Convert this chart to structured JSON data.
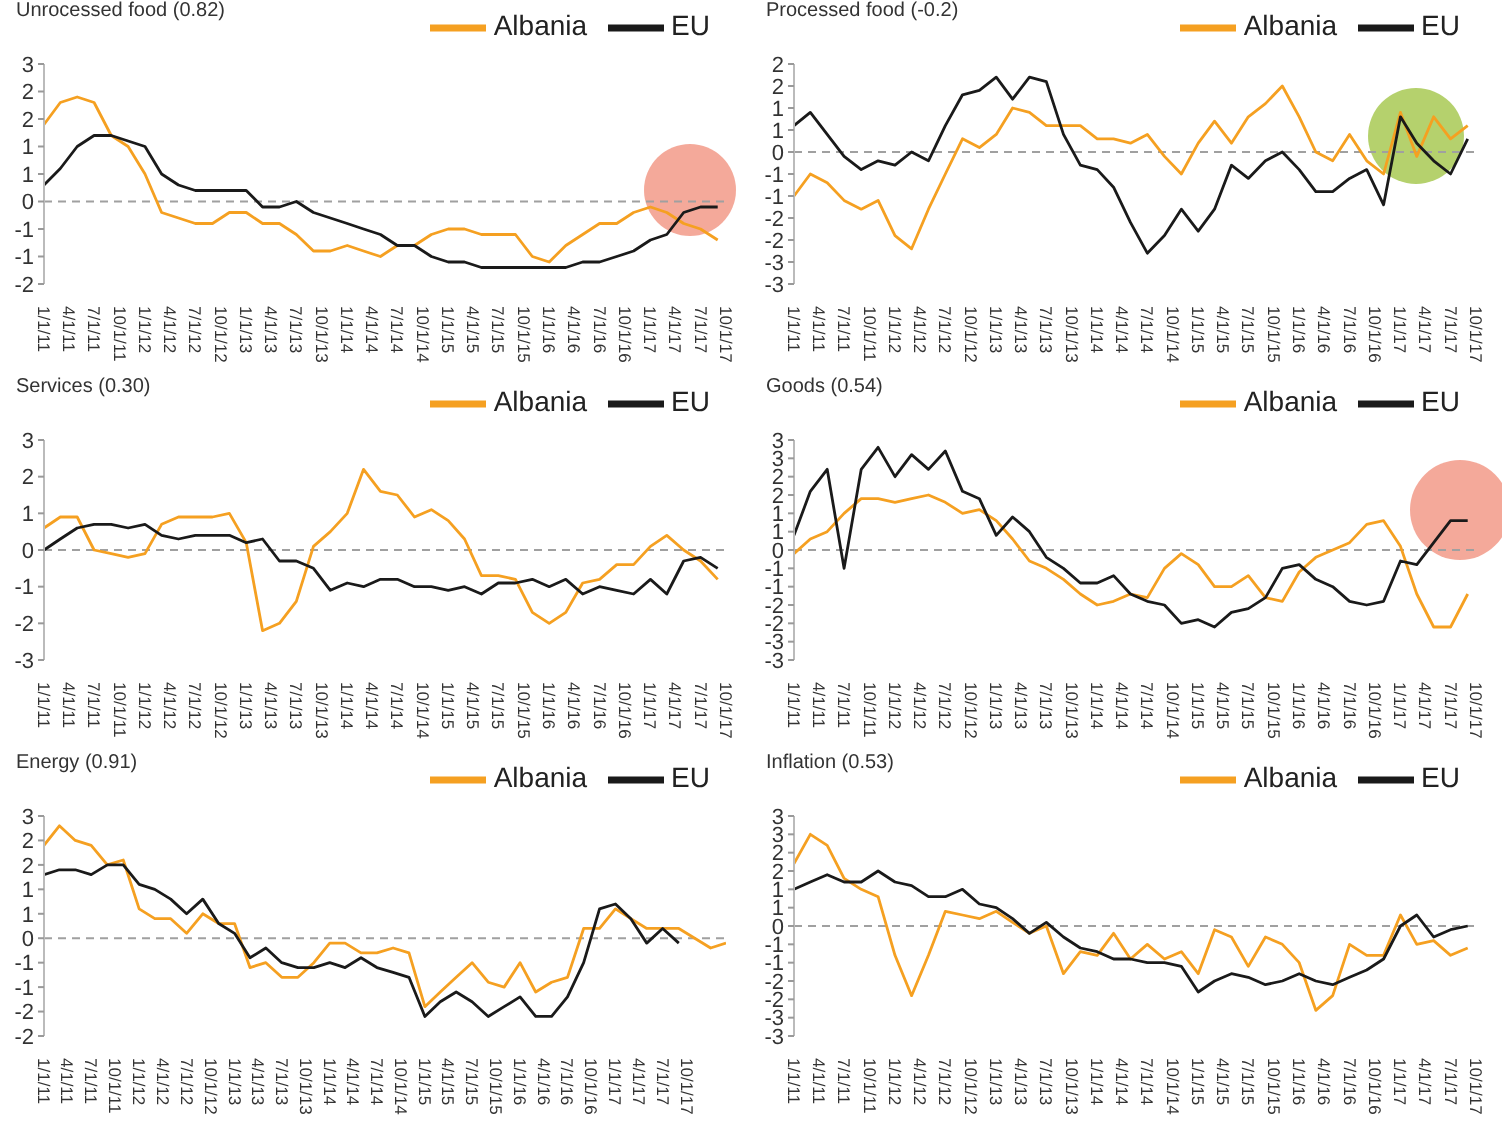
{
  "chart_data": [
    {
      "type": "line",
      "title": "Unrocessed food (0.82)",
      "legend": "top right",
      "marker": "none",
      "grid": false,
      "x": [
        "2011-01",
        "2011-03",
        "2011-05",
        "2011-07",
        "2011-09",
        "2011-11",
        "2012-01",
        "2012-03",
        "2012-05",
        "2012-07",
        "2012-09",
        "2012-11",
        "2013-01",
        "2013-03",
        "2013-05",
        "2013-07",
        "2013-09",
        "2013-11",
        "2014-01",
        "2014-03",
        "2014-05",
        "2014-07",
        "2014-09",
        "2014-11",
        "2015-01",
        "2015-03",
        "2015-05",
        "2015-07",
        "2015-09",
        "2015-11",
        "2016-01",
        "2016-03",
        "2016-05",
        "2016-07",
        "2016-09",
        "2016-11",
        "2017-01",
        "2017-03",
        "2017-05",
        "2017-07",
        "2017-09"
      ],
      "xlim": [
        "2011-01",
        "2017-10"
      ],
      "xticks": [
        {
          "value": "2011-01",
          "label": "1/1/11"
        },
        {
          "value": "2011-04",
          "label": "4/1/11"
        },
        {
          "value": "2011-07",
          "label": "7/1/11"
        },
        {
          "value": "2011-10",
          "label": "10/1/11"
        },
        {
          "value": "2012-01",
          "label": "1/1/12"
        },
        {
          "value": "2012-04",
          "label": "4/1/12"
        },
        {
          "value": "2012-07",
          "label": "7/1/12"
        },
        {
          "value": "2012-10",
          "label": "10/1/12"
        },
        {
          "value": "2013-01",
          "label": "1/1/13"
        },
        {
          "value": "2013-04",
          "label": "4/1/13"
        },
        {
          "value": "2013-07",
          "label": "7/1/13"
        },
        {
          "value": "2013-10",
          "label": "10/1/13"
        },
        {
          "value": "2014-01",
          "label": "1/1/14"
        },
        {
          "value": "2014-04",
          "label": "4/1/14"
        },
        {
          "value": "2014-07",
          "label": "7/1/14"
        },
        {
          "value": "2014-10",
          "label": "10/1/14"
        },
        {
          "value": "2015-01",
          "label": "1/1/15"
        },
        {
          "value": "2015-04",
          "label": "4/1/15"
        },
        {
          "value": "2015-07",
          "label": "7/1/15"
        },
        {
          "value": "2015-10",
          "label": "10/1/15"
        },
        {
          "value": "2016-01",
          "label": "1/1/16"
        },
        {
          "value": "2016-04",
          "label": "4/1/16"
        },
        {
          "value": "2016-07",
          "label": "7/1/16"
        },
        {
          "value": "2016-10",
          "label": "10/1/16"
        },
        {
          "value": "2017-01",
          "label": "1/1/17"
        },
        {
          "value": "2017-04",
          "label": "4/1/17"
        },
        {
          "value": "2017-07",
          "label": "7/1/17"
        },
        {
          "value": "2017-10",
          "label": "10/1/17"
        }
      ],
      "ylim": [
        -1.5,
        2.5
      ],
      "yticks": [
        {
          "value": 2.5,
          "label": "3"
        },
        {
          "value": 2,
          "label": "2"
        },
        {
          "value": 1.5,
          "label": "2"
        },
        {
          "value": 1,
          "label": "1"
        },
        {
          "value": 0.5,
          "label": "1"
        },
        0,
        {
          "value": -0.5,
          "label": "-1"
        },
        {
          "value": -1,
          "label": "-1"
        },
        {
          "value": -1.5,
          "label": "-2"
        }
      ],
      "ref_lines": [
        {
          "axis": "y",
          "value": 0,
          "color": "#a0a0a0",
          "line_style": "dashed"
        }
      ],
      "series": [
        {
          "name": "Albania",
          "color": "#f5a021",
          "values": [
            1.4,
            1.8,
            1.9,
            1.8,
            1.2,
            1.0,
            0.5,
            -0.2,
            -0.3,
            -0.4,
            -0.4,
            -0.2,
            -0.2,
            -0.4,
            -0.4,
            -0.6,
            -0.9,
            -0.9,
            -0.8,
            -0.9,
            -1.0,
            -0.8,
            -0.8,
            -0.6,
            -0.5,
            -0.5,
            -0.6,
            -0.6,
            -0.6,
            -1.0,
            -1.1,
            -0.8,
            -0.6,
            -0.4,
            -0.4,
            -0.2,
            -0.1,
            -0.2,
            -0.4,
            -0.5,
            -0.7
          ]
        },
        {
          "name": "EU",
          "color": "#1a1a1a",
          "values": [
            0.3,
            0.6,
            1.0,
            1.2,
            1.2,
            1.1,
            1.0,
            0.5,
            0.3,
            0.2,
            0.2,
            0.2,
            0.2,
            -0.1,
            -0.1,
            0.0,
            -0.2,
            -0.3,
            -0.4,
            -0.5,
            -0.6,
            -0.8,
            -0.8,
            -1.0,
            -1.1,
            -1.1,
            -1.2,
            -1.2,
            -1.2,
            -1.2,
            -1.2,
            -1.2,
            -1.1,
            -1.1,
            -1.0,
            -0.9,
            -0.7,
            -0.6,
            -0.2,
            -0.1,
            -0.1
          ]
        }
      ]
    },
    {
      "type": "line",
      "title": "Processed food (-0.2)",
      "legend": "top right",
      "marker": "none",
      "grid": false,
      "x": [
        "2011-01",
        "2011-03",
        "2011-05",
        "2011-07",
        "2011-09",
        "2011-11",
        "2012-01",
        "2012-03",
        "2012-05",
        "2012-07",
        "2012-09",
        "2012-11",
        "2013-01",
        "2013-03",
        "2013-05",
        "2013-07",
        "2013-09",
        "2013-11",
        "2014-01",
        "2014-03",
        "2014-05",
        "2014-07",
        "2014-09",
        "2014-11",
        "2015-01",
        "2015-03",
        "2015-05",
        "2015-07",
        "2015-09",
        "2015-11",
        "2016-01",
        "2016-03",
        "2016-05",
        "2016-07",
        "2016-09",
        "2016-11",
        "2017-01",
        "2017-03",
        "2017-05",
        "2017-07",
        "2017-09"
      ],
      "xlim": [
        "2011-01",
        "2017-10"
      ],
      "xticks": [
        {
          "value": "2011-01",
          "label": "1/1/11"
        },
        {
          "value": "2011-04",
          "label": "4/1/11"
        },
        {
          "value": "2011-07",
          "label": "7/1/11"
        },
        {
          "value": "2011-10",
          "label": "10/1/11"
        },
        {
          "value": "2012-01",
          "label": "1/1/12"
        },
        {
          "value": "2012-04",
          "label": "4/1/12"
        },
        {
          "value": "2012-07",
          "label": "7/1/12"
        },
        {
          "value": "2012-10",
          "label": "10/1/12"
        },
        {
          "value": "2013-01",
          "label": "1/1/13"
        },
        {
          "value": "2013-04",
          "label": "4/1/13"
        },
        {
          "value": "2013-07",
          "label": "7/1/13"
        },
        {
          "value": "2013-10",
          "label": "10/1/13"
        },
        {
          "value": "2014-01",
          "label": "1/1/14"
        },
        {
          "value": "2014-04",
          "label": "4/1/14"
        },
        {
          "value": "2014-07",
          "label": "7/1/14"
        },
        {
          "value": "2014-10",
          "label": "10/1/14"
        },
        {
          "value": "2015-01",
          "label": "1/1/15"
        },
        {
          "value": "2015-04",
          "label": "4/1/15"
        },
        {
          "value": "2015-07",
          "label": "7/1/15"
        },
        {
          "value": "2015-10",
          "label": "10/1/15"
        },
        {
          "value": "2016-01",
          "label": "1/1/16"
        },
        {
          "value": "2016-04",
          "label": "4/1/16"
        },
        {
          "value": "2016-07",
          "label": "7/1/16"
        },
        {
          "value": "2016-10",
          "label": "10/1/16"
        },
        {
          "value": "2017-01",
          "label": "1/1/17"
        },
        {
          "value": "2017-04",
          "label": "4/1/17"
        },
        {
          "value": "2017-07",
          "label": "7/1/17"
        },
        {
          "value": "2017-10",
          "label": "10/1/17"
        }
      ],
      "ylim": [
        -3,
        2
      ],
      "yticks": [
        2,
        {
          "value": 1.5,
          "label": "2"
        },
        1,
        {
          "value": 0.5,
          "label": "1"
        },
        0,
        {
          "value": -0.5,
          "label": "-1"
        },
        -1,
        {
          "value": -1.5,
          "label": "-2"
        },
        -2,
        {
          "value": -2.5,
          "label": "-3"
        },
        -3
      ],
      "ref_lines": [
        {
          "axis": "y",
          "value": 0,
          "color": "#a0a0a0",
          "line_style": "dashed"
        }
      ],
      "series": [
        {
          "name": "Albania",
          "color": "#f5a021",
          "values": [
            -1.0,
            -0.5,
            -0.7,
            -1.1,
            -1.3,
            -1.1,
            -1.9,
            -2.2,
            -1.3,
            -0.5,
            0.3,
            0.1,
            0.4,
            1.0,
            0.9,
            0.6,
            0.6,
            0.6,
            0.3,
            0.3,
            0.2,
            0.4,
            -0.1,
            -0.5,
            0.2,
            0.7,
            0.2,
            0.8,
            1.1,
            1.5,
            0.8,
            0.0,
            -0.2,
            0.4,
            -0.2,
            -0.5,
            0.9,
            -0.1,
            0.8,
            0.3,
            0.6
          ]
        },
        {
          "name": "EU",
          "color": "#1a1a1a",
          "values": [
            0.6,
            0.9,
            0.4,
            -0.1,
            -0.4,
            -0.2,
            -0.3,
            0.0,
            -0.2,
            0.6,
            1.3,
            1.4,
            1.7,
            1.2,
            1.7,
            1.6,
            0.4,
            -0.3,
            -0.4,
            -0.8,
            -1.6,
            -2.3,
            -1.9,
            -1.3,
            -1.8,
            -1.3,
            -0.3,
            -0.6,
            -0.2,
            0.0,
            -0.4,
            -0.9,
            -0.9,
            -0.6,
            -0.4,
            -1.2,
            0.8,
            0.2,
            -0.2,
            -0.5,
            0.3
          ]
        }
      ]
    },
    {
      "type": "line",
      "title": "Services (0.30)",
      "legend": "top right",
      "marker": "none",
      "grid": false,
      "x": [
        "2011-01",
        "2011-03",
        "2011-05",
        "2011-07",
        "2011-09",
        "2011-11",
        "2012-01",
        "2012-03",
        "2012-05",
        "2012-07",
        "2012-09",
        "2012-11",
        "2013-01",
        "2013-03",
        "2013-05",
        "2013-07",
        "2013-09",
        "2013-11",
        "2014-01",
        "2014-03",
        "2014-05",
        "2014-07",
        "2014-09",
        "2014-11",
        "2015-01",
        "2015-03",
        "2015-05",
        "2015-07",
        "2015-09",
        "2015-11",
        "2016-01",
        "2016-03",
        "2016-05",
        "2016-07",
        "2016-09",
        "2016-11",
        "2017-01",
        "2017-03",
        "2017-05",
        "2017-07",
        "2017-09"
      ],
      "xlim": [
        "2011-01",
        "2017-10"
      ],
      "xticks": [
        {
          "value": "2011-01",
          "label": "1/1/11"
        },
        {
          "value": "2011-04",
          "label": "4/1/11"
        },
        {
          "value": "2011-07",
          "label": "7/1/11"
        },
        {
          "value": "2011-10",
          "label": "10/1/11"
        },
        {
          "value": "2012-01",
          "label": "1/1/12"
        },
        {
          "value": "2012-04",
          "label": "4/1/12"
        },
        {
          "value": "2012-07",
          "label": "7/1/12"
        },
        {
          "value": "2012-10",
          "label": "10/1/12"
        },
        {
          "value": "2013-01",
          "label": "1/1/13"
        },
        {
          "value": "2013-04",
          "label": "4/1/13"
        },
        {
          "value": "2013-07",
          "label": "7/1/13"
        },
        {
          "value": "2013-10",
          "label": "10/1/13"
        },
        {
          "value": "2014-01",
          "label": "1/1/14"
        },
        {
          "value": "2014-04",
          "label": "4/1/14"
        },
        {
          "value": "2014-07",
          "label": "7/1/14"
        },
        {
          "value": "2014-10",
          "label": "10/1/14"
        },
        {
          "value": "2015-01",
          "label": "1/1/15"
        },
        {
          "value": "2015-04",
          "label": "4/1/15"
        },
        {
          "value": "2015-07",
          "label": "7/1/15"
        },
        {
          "value": "2015-10",
          "label": "10/1/15"
        },
        {
          "value": "2016-01",
          "label": "1/1/16"
        },
        {
          "value": "2016-04",
          "label": "4/1/16"
        },
        {
          "value": "2016-07",
          "label": "7/1/16"
        },
        {
          "value": "2016-10",
          "label": "10/1/16"
        },
        {
          "value": "2017-01",
          "label": "1/1/17"
        },
        {
          "value": "2017-04",
          "label": "4/1/17"
        },
        {
          "value": "2017-07",
          "label": "7/1/17"
        },
        {
          "value": "2017-10",
          "label": "10/1/17"
        }
      ],
      "ylim": [
        -3,
        3
      ],
      "yticks": [
        3,
        2,
        1,
        0,
        -1,
        -2,
        -3
      ],
      "ref_lines": [
        {
          "axis": "y",
          "value": 0,
          "color": "#a0a0a0",
          "line_style": "dashed"
        }
      ],
      "series": [
        {
          "name": "Albania",
          "color": "#f5a021",
          "values": [
            0.6,
            0.9,
            0.9,
            0.0,
            -0.1,
            -0.2,
            -0.1,
            0.7,
            0.9,
            0.9,
            0.9,
            1.0,
            0.2,
            -2.2,
            -2.0,
            -1.4,
            0.1,
            0.5,
            1.0,
            2.2,
            1.6,
            1.5,
            0.9,
            1.1,
            0.8,
            0.3,
            -0.7,
            -0.7,
            -0.8,
            -1.7,
            -2.0,
            -1.7,
            -0.9,
            -0.8,
            -0.4,
            -0.4,
            0.1,
            0.4,
            0.0,
            -0.3,
            -0.8
          ]
        },
        {
          "name": "EU",
          "color": "#1a1a1a",
          "values": [
            0.0,
            0.3,
            0.6,
            0.7,
            0.7,
            0.6,
            0.7,
            0.4,
            0.3,
            0.4,
            0.4,
            0.4,
            0.2,
            0.3,
            -0.3,
            -0.3,
            -0.5,
            -1.1,
            -0.9,
            -1.0,
            -0.8,
            -0.8,
            -1.0,
            -1.0,
            -1.1,
            -1.0,
            -1.2,
            -0.9,
            -0.9,
            -0.8,
            -1.0,
            -0.8,
            -1.2,
            -1.0,
            -1.1,
            -1.2,
            -0.8,
            -1.2,
            -0.3,
            -0.2,
            -0.5
          ]
        }
      ]
    },
    {
      "type": "line",
      "title": "Goods (0.54)",
      "legend": "top right",
      "marker": "none",
      "grid": false,
      "x": [
        "2011-01",
        "2011-03",
        "2011-05",
        "2011-07",
        "2011-09",
        "2011-11",
        "2012-01",
        "2012-03",
        "2012-05",
        "2012-07",
        "2012-09",
        "2012-11",
        "2013-01",
        "2013-03",
        "2013-05",
        "2013-07",
        "2013-09",
        "2013-11",
        "2014-01",
        "2014-03",
        "2014-05",
        "2014-07",
        "2014-09",
        "2014-11",
        "2015-01",
        "2015-03",
        "2015-05",
        "2015-07",
        "2015-09",
        "2015-11",
        "2016-01",
        "2016-03",
        "2016-05",
        "2016-07",
        "2016-09",
        "2016-11",
        "2017-01",
        "2017-03",
        "2017-05",
        "2017-07",
        "2017-09"
      ],
      "xlim": [
        "2011-01",
        "2017-10"
      ],
      "xticks": [
        {
          "value": "2011-01",
          "label": "1/1/11"
        },
        {
          "value": "2011-04",
          "label": "4/1/11"
        },
        {
          "value": "2011-07",
          "label": "7/1/11"
        },
        {
          "value": "2011-10",
          "label": "10/1/11"
        },
        {
          "value": "2012-01",
          "label": "1/1/12"
        },
        {
          "value": "2012-04",
          "label": "4/1/12"
        },
        {
          "value": "2012-07",
          "label": "7/1/12"
        },
        {
          "value": "2012-10",
          "label": "10/1/12"
        },
        {
          "value": "2013-01",
          "label": "1/1/13"
        },
        {
          "value": "2013-04",
          "label": "4/1/13"
        },
        {
          "value": "2013-07",
          "label": "7/1/13"
        },
        {
          "value": "2013-10",
          "label": "10/1/13"
        },
        {
          "value": "2014-01",
          "label": "1/1/14"
        },
        {
          "value": "2014-04",
          "label": "4/1/14"
        },
        {
          "value": "2014-07",
          "label": "7/1/14"
        },
        {
          "value": "2014-10",
          "label": "10/1/14"
        },
        {
          "value": "2015-01",
          "label": "1/1/15"
        },
        {
          "value": "2015-04",
          "label": "4/1/15"
        },
        {
          "value": "2015-07",
          "label": "7/1/15"
        },
        {
          "value": "2015-10",
          "label": "10/1/15"
        },
        {
          "value": "2016-01",
          "label": "1/1/16"
        },
        {
          "value": "2016-04",
          "label": "4/1/16"
        },
        {
          "value": "2016-07",
          "label": "7/1/16"
        },
        {
          "value": "2016-10",
          "label": "10/1/16"
        },
        {
          "value": "2017-01",
          "label": "1/1/17"
        },
        {
          "value": "2017-04",
          "label": "4/1/17"
        },
        {
          "value": "2017-07",
          "label": "7/1/17"
        },
        {
          "value": "2017-10",
          "label": "10/1/17"
        }
      ],
      "ylim": [
        -3,
        3
      ],
      "yticks": [
        3,
        {
          "value": 2.5,
          "label": "3"
        },
        2,
        {
          "value": 1.5,
          "label": "2"
        },
        1,
        {
          "value": 0.5,
          "label": "1"
        },
        0,
        {
          "value": -0.5,
          "label": "-1"
        },
        -1,
        {
          "value": -1.5,
          "label": "-2"
        },
        -2,
        {
          "value": -2.5,
          "label": "-3"
        },
        -3
      ],
      "ref_lines": [
        {
          "axis": "y",
          "value": 0,
          "color": "#a0a0a0",
          "line_style": "dashed"
        }
      ],
      "series": [
        {
          "name": "Albania",
          "color": "#f5a021",
          "values": [
            -0.1,
            0.3,
            0.5,
            1.0,
            1.4,
            1.4,
            1.3,
            1.4,
            1.5,
            1.3,
            1.0,
            1.1,
            0.8,
            0.3,
            -0.3,
            -0.5,
            -0.8,
            -1.2,
            -1.5,
            -1.4,
            -1.2,
            -1.3,
            -0.5,
            -0.1,
            -0.4,
            -1.0,
            -1.0,
            -0.7,
            -1.3,
            -1.4,
            -0.6,
            -0.2,
            0.0,
            0.2,
            0.7,
            0.8,
            0.1,
            -1.2,
            -2.1,
            -2.1,
            -1.2
          ]
        },
        {
          "name": "EU",
          "color": "#1a1a1a",
          "values": [
            0.4,
            1.6,
            2.2,
            -0.5,
            2.2,
            2.8,
            2.0,
            2.6,
            2.2,
            2.7,
            1.6,
            1.4,
            0.4,
            0.9,
            0.5,
            -0.2,
            -0.5,
            -0.9,
            -0.9,
            -0.7,
            -1.2,
            -1.4,
            -1.5,
            -2.0,
            -1.9,
            -2.1,
            -1.7,
            -1.6,
            -1.3,
            -0.5,
            -0.4,
            -0.8,
            -1.0,
            -1.4,
            -1.5,
            -1.4,
            -0.3,
            -0.4,
            0.2,
            0.8,
            0.8
          ]
        }
      ]
    },
    {
      "type": "line",
      "title": "Energy (0.91)",
      "legend": "top right",
      "marker": "none",
      "grid": false,
      "x": [
        "2011-01",
        "2011-03",
        "2011-05",
        "2011-07",
        "2011-09",
        "2011-11",
        "2012-01",
        "2012-03",
        "2012-05",
        "2012-07",
        "2012-09",
        "2012-11",
        "2013-01",
        "2013-03",
        "2013-05",
        "2013-07",
        "2013-09",
        "2013-11",
        "2014-01",
        "2014-03",
        "2014-05",
        "2014-07",
        "2014-09",
        "2014-11",
        "2015-01",
        "2015-03",
        "2015-05",
        "2015-07",
        "2015-09",
        "2015-11",
        "2016-01",
        "2016-03",
        "2016-05",
        "2016-07",
        "2016-09",
        "2016-11",
        "2017-01",
        "2017-03",
        "2017-05",
        "2017-07",
        "2017-09",
        "2017-11",
        "2018-01",
        "2018-03"
      ],
      "xlim": [
        "2011-01",
        "2018-03"
      ],
      "xticks": [
        {
          "value": "2011-01",
          "label": "1/1/11"
        },
        {
          "value": "2011-04",
          "label": "4/1/11"
        },
        {
          "value": "2011-07",
          "label": "7/1/11"
        },
        {
          "value": "2011-10",
          "label": "10/1/11"
        },
        {
          "value": "2012-01",
          "label": "1/1/12"
        },
        {
          "value": "2012-04",
          "label": "4/1/12"
        },
        {
          "value": "2012-07",
          "label": "7/1/12"
        },
        {
          "value": "2012-10",
          "label": "10/1/12"
        },
        {
          "value": "2013-01",
          "label": "1/1/13"
        },
        {
          "value": "2013-04",
          "label": "4/1/13"
        },
        {
          "value": "2013-07",
          "label": "7/1/13"
        },
        {
          "value": "2013-10",
          "label": "10/1/13"
        },
        {
          "value": "2014-01",
          "label": "1/1/14"
        },
        {
          "value": "2014-04",
          "label": "4/1/14"
        },
        {
          "value": "2014-07",
          "label": "7/1/14"
        },
        {
          "value": "2014-10",
          "label": "10/1/14"
        },
        {
          "value": "2015-01",
          "label": "1/1/15"
        },
        {
          "value": "2015-04",
          "label": "4/1/15"
        },
        {
          "value": "2015-07",
          "label": "7/1/15"
        },
        {
          "value": "2015-10",
          "label": "10/1/15"
        },
        {
          "value": "2016-01",
          "label": "1/1/16"
        },
        {
          "value": "2016-04",
          "label": "4/1/16"
        },
        {
          "value": "2016-07",
          "label": "7/1/16"
        },
        {
          "value": "2016-10",
          "label": "10/1/16"
        },
        {
          "value": "2017-01",
          "label": "1/1/17"
        },
        {
          "value": "2017-04",
          "label": "4/1/17"
        },
        {
          "value": "2017-07",
          "label": "7/1/17"
        },
        {
          "value": "2017-10",
          "label": "10/1/17"
        }
      ],
      "ylim": [
        -2,
        2.5
      ],
      "yticks": [
        {
          "value": 2.5,
          "label": "3"
        },
        2,
        {
          "value": 1.5,
          "label": "2"
        },
        1,
        {
          "value": 0.5,
          "label": "1"
        },
        0,
        {
          "value": -0.5,
          "label": "-1"
        },
        -1,
        {
          "value": -1.5,
          "label": "-2"
        },
        -2
      ],
      "ref_lines": [
        {
          "axis": "y",
          "value": 0,
          "color": "#a0a0a0",
          "line_style": "dashed"
        }
      ],
      "series": [
        {
          "name": "Albania",
          "color": "#f5a021",
          "values": [
            1.9,
            2.3,
            2.0,
            1.9,
            1.5,
            1.6,
            0.6,
            0.4,
            0.4,
            0.1,
            0.5,
            0.3,
            0.3,
            -0.6,
            -0.5,
            -0.8,
            -0.8,
            -0.5,
            -0.1,
            -0.1,
            -0.3,
            -0.3,
            -0.2,
            -0.3,
            -1.4,
            -1.1,
            -0.8,
            -0.5,
            -0.9,
            -1.0,
            -0.5,
            -1.1,
            -0.9,
            -0.8,
            0.2,
            0.2,
            0.6,
            0.4,
            0.2,
            0.2,
            0.2,
            0.0,
            -0.2,
            -0.1
          ]
        },
        {
          "name": "EU",
          "color": "#1a1a1a",
          "values": [
            1.3,
            1.4,
            1.4,
            1.3,
            1.5,
            1.5,
            1.1,
            1.0,
            0.8,
            0.5,
            0.8,
            0.3,
            0.1,
            -0.4,
            -0.2,
            -0.5,
            -0.6,
            -0.6,
            -0.5,
            -0.6,
            -0.4,
            -0.6,
            -0.7,
            -0.8,
            -1.6,
            -1.3,
            -1.1,
            -1.3,
            -1.6,
            -1.4,
            -1.2,
            -1.6,
            -1.6,
            -1.2,
            -0.5,
            0.6,
            0.7,
            0.4,
            -0.1,
            0.2,
            -0.1,
            null,
            null,
            null
          ]
        }
      ]
    },
    {
      "type": "line",
      "title": "Inflation (0.53)",
      "legend": "top right",
      "marker": "none",
      "grid": false,
      "x": [
        "2011-01",
        "2011-03",
        "2011-05",
        "2011-07",
        "2011-09",
        "2011-11",
        "2012-01",
        "2012-03",
        "2012-05",
        "2012-07",
        "2012-09",
        "2012-11",
        "2013-01",
        "2013-03",
        "2013-05",
        "2013-07",
        "2013-09",
        "2013-11",
        "2014-01",
        "2014-03",
        "2014-05",
        "2014-07",
        "2014-09",
        "2014-11",
        "2015-01",
        "2015-03",
        "2015-05",
        "2015-07",
        "2015-09",
        "2015-11",
        "2016-01",
        "2016-03",
        "2016-05",
        "2016-07",
        "2016-09",
        "2016-11",
        "2017-01",
        "2017-03",
        "2017-05",
        "2017-07",
        "2017-09"
      ],
      "xlim": [
        "2011-01",
        "2017-10"
      ],
      "xticks": [
        {
          "value": "2011-01",
          "label": "1/1/11"
        },
        {
          "value": "2011-04",
          "label": "4/1/11"
        },
        {
          "value": "2011-07",
          "label": "7/1/11"
        },
        {
          "value": "2011-10",
          "label": "10/1/11"
        },
        {
          "value": "2012-01",
          "label": "1/1/12"
        },
        {
          "value": "2012-04",
          "label": "4/1/12"
        },
        {
          "value": "2012-07",
          "label": "7/1/12"
        },
        {
          "value": "2012-10",
          "label": "10/1/12"
        },
        {
          "value": "2013-01",
          "label": "1/1/13"
        },
        {
          "value": "2013-04",
          "label": "4/1/13"
        },
        {
          "value": "2013-07",
          "label": "7/1/13"
        },
        {
          "value": "2013-10",
          "label": "10/1/13"
        },
        {
          "value": "2014-01",
          "label": "1/1/14"
        },
        {
          "value": "2014-04",
          "label": "4/1/14"
        },
        {
          "value": "2014-07",
          "label": "7/1/14"
        },
        {
          "value": "2014-10",
          "label": "10/1/14"
        },
        {
          "value": "2015-01",
          "label": "1/1/15"
        },
        {
          "value": "2015-04",
          "label": "4/1/15"
        },
        {
          "value": "2015-07",
          "label": "7/1/15"
        },
        {
          "value": "2015-10",
          "label": "10/1/15"
        },
        {
          "value": "2016-01",
          "label": "1/1/16"
        },
        {
          "value": "2016-04",
          "label": "4/1/16"
        },
        {
          "value": "2016-07",
          "label": "7/1/16"
        },
        {
          "value": "2016-10",
          "label": "10/1/16"
        },
        {
          "value": "2017-01",
          "label": "1/1/17"
        },
        {
          "value": "2017-04",
          "label": "4/1/17"
        },
        {
          "value": "2017-07",
          "label": "7/1/17"
        },
        {
          "value": "2017-10",
          "label": "10/1/17"
        }
      ],
      "ylim": [
        -3,
        3
      ],
      "yticks": [
        3,
        {
          "value": 2.5,
          "label": "3"
        },
        2,
        {
          "value": 1.5,
          "label": "2"
        },
        1,
        {
          "value": 0.5,
          "label": "1"
        },
        0,
        {
          "value": -0.5,
          "label": "-1"
        },
        -1,
        {
          "value": -1.5,
          "label": "-2"
        },
        -2,
        {
          "value": -2.5,
          "label": "-3"
        },
        -3
      ],
      "ref_lines": [
        {
          "axis": "y",
          "value": 0,
          "color": "#a0a0a0",
          "line_style": "dashed"
        }
      ],
      "series": [
        {
          "name": "Albania",
          "color": "#f5a021",
          "values": [
            1.7,
            2.5,
            2.2,
            1.3,
            1.0,
            0.8,
            -0.8,
            -1.9,
            -0.8,
            0.4,
            0.3,
            0.2,
            0.4,
            0.1,
            -0.2,
            0.0,
            -1.3,
            -0.7,
            -0.8,
            -0.2,
            -0.9,
            -0.5,
            -0.9,
            -0.7,
            -1.3,
            -0.1,
            -0.3,
            -1.1,
            -0.3,
            -0.5,
            -1.0,
            -2.3,
            -1.9,
            -0.5,
            -0.8,
            -0.8,
            0.3,
            -0.5,
            -0.4,
            -0.8,
            -0.6
          ]
        },
        {
          "name": "EU",
          "color": "#1a1a1a",
          "values": [
            1.0,
            1.2,
            1.4,
            1.2,
            1.2,
            1.5,
            1.2,
            1.1,
            0.8,
            0.8,
            1.0,
            0.6,
            0.5,
            0.2,
            -0.2,
            0.1,
            -0.3,
            -0.6,
            -0.7,
            -0.9,
            -0.9,
            -1.0,
            -1.0,
            -1.1,
            -1.8,
            -1.5,
            -1.3,
            -1.4,
            -1.6,
            -1.5,
            -1.3,
            -1.5,
            -1.6,
            -1.4,
            -1.2,
            -0.9,
            0.0,
            0.3,
            -0.3,
            -0.1,
            0.0
          ]
        }
      ]
    }
  ]
}
